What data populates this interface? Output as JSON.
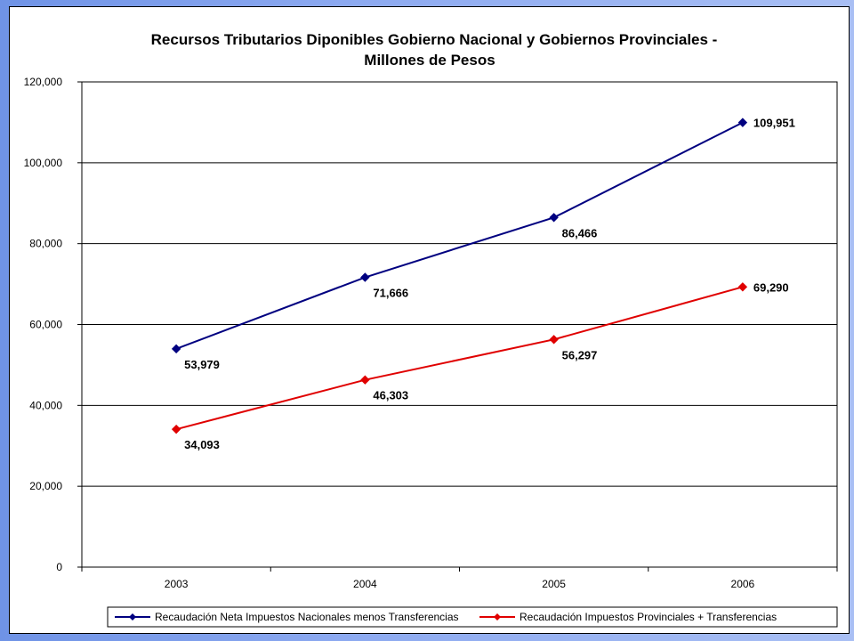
{
  "chart_data": {
    "type": "line",
    "title": "Recursos Tributarios Diponibles Gobierno Nacional y Gobiernos Provinciales -",
    "subtitle": "Millones de Pesos",
    "categories": [
      "2003",
      "2004",
      "2005",
      "2006"
    ],
    "ylim": [
      0,
      120000
    ],
    "yticks": [
      "0",
      "20,000",
      "40,000",
      "60,000",
      "80,000",
      "100,000",
      "120,000"
    ],
    "ytick_values": [
      0,
      20000,
      40000,
      60000,
      80000,
      100000,
      120000
    ],
    "grid": true,
    "legend_position": "bottom",
    "series": [
      {
        "name": "Recaudación Neta Impuestos Nacionales menos Transferencias",
        "color": "#000080",
        "values": [
          53979,
          71666,
          86466,
          109951
        ],
        "labels": [
          "53,979",
          "71,666",
          "86,466",
          "109,951"
        ]
      },
      {
        "name": "Recaudación Impuestos Provinciales + Transferencias",
        "color": "#e00000",
        "values": [
          34093,
          46303,
          56297,
          69290
        ],
        "labels": [
          "34,093",
          "46,303",
          "56,297",
          "69,290"
        ]
      }
    ]
  }
}
